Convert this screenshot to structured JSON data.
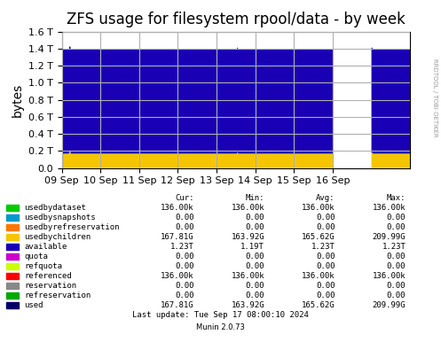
{
  "chart_data": {
    "type": "area",
    "stacked": true,
    "title": "ZFS usage for filesystem rpool/data - by week",
    "y_label": "bytes",
    "x": [
      1725753600,
      1725769754.924875,
      1725770764.607679,
      1725772783.973289,
      1725773793.656093,
      1726144347.245409,
      1726145356.928214,
      1726146366.611018,
      1726147376.293823,
      1726358400,
      1726358400,
      1726444800,
      1726446987.341772,
      1726448081.012658,
      1726531200
    ],
    "series": [
      {
        "name": "usedbydataset",
        "color": "#00c000",
        "values": [
          136000,
          136000,
          136000,
          136000,
          136000,
          136000,
          136000,
          136000,
          136000,
          136000,
          null,
          136000,
          136000,
          136000,
          136000
        ]
      },
      {
        "name": "usedbychildren",
        "color": "#f5c600",
        "values": [
          168000000000.0,
          168000000000.0,
          195000000000.0,
          195000000000.0,
          168000000000.0,
          168000000000.0,
          182000000000.0,
          182000000000.0,
          168000000000.0,
          168000000000.0,
          null,
          180000000000.0,
          180000000000.0,
          168000000000.0,
          168000000000.0
        ]
      },
      {
        "name": "available",
        "color": "#1a00b4",
        "values": [
          1230000000000.0,
          1230000000000.0,
          1230000000000.0,
          1230000000000.0,
          1230000000000.0,
          1230000000000.0,
          1230000000000.0,
          1230000000000.0,
          1230000000000.0,
          1230000000000.0,
          null,
          1230000000000.0,
          1230000000000.0,
          1230000000000.0,
          1230000000000.0
        ]
      }
    ],
    "xlim": [
      1725753600,
      1726531200
    ],
    "xticks": [
      {
        "value": 1725753600,
        "label": "09 Sep"
      },
      {
        "value": 1725840000,
        "label": "10 Sep"
      },
      {
        "value": 1725926400,
        "label": "11 Sep"
      },
      {
        "value": 1726012800,
        "label": "12 Sep"
      },
      {
        "value": 1726099200,
        "label": "13 Sep"
      },
      {
        "value": 1726185600,
        "label": "14 Sep"
      },
      {
        "value": 1726272000,
        "label": "15 Sep"
      },
      {
        "value": 1726358400,
        "label": "16 Sep"
      }
    ],
    "ylim": [
      0,
      1600000000000.0
    ],
    "yticks": [
      {
        "value": 0,
        "label": "0.0"
      },
      {
        "value": 200000000000.0,
        "label": "0.2 T"
      },
      {
        "value": 400000000000.0,
        "label": "0.4 T"
      },
      {
        "value": 600000000000.0,
        "label": "0.6 T"
      },
      {
        "value": 800000000000.0,
        "label": "0.8 T"
      },
      {
        "value": 1000000000000.0,
        "label": "1.0 T"
      },
      {
        "value": 1200000000000.0,
        "label": "1.2 T"
      },
      {
        "value": 1400000000000.0,
        "label": "1.4 T"
      },
      {
        "value": 1600000000000.0,
        "label": "1.6 T"
      }
    ],
    "grid": true,
    "annotations": [
      "RRDTOOL / TOBI OETIKER",
      "Last update: Tue Sep 17 08:00:10 2024",
      "Munin 2.0.73"
    ],
    "table": {
      "headers": [
        "Cur:",
        "Min:",
        "Avg:",
        "Max:"
      ],
      "rows": [
        {
          "label": "usedbydataset",
          "color": "#00cc00",
          "values": [
            "136.00k",
            "136.00k",
            "136.00k",
            "136.00k"
          ]
        },
        {
          "label": "usedbysnapshots",
          "color": "#0099cc",
          "values": [
            "0.00",
            "0.00",
            "0.00",
            "0.00"
          ]
        },
        {
          "label": "usedbyrefreservation",
          "color": "#ff7700",
          "values": [
            "0.00",
            "0.00",
            "0.00",
            "0.00"
          ]
        },
        {
          "label": "usedbychildren",
          "color": "#f5c600",
          "values": [
            "167.81G",
            "163.92G",
            "165.62G",
            "209.99G"
          ]
        },
        {
          "label": "available",
          "color": "#1a00b4",
          "values": [
            "1.23T",
            "1.19T",
            "1.23T",
            "1.23T"
          ]
        },
        {
          "label": "quota",
          "color": "#cc00cc",
          "values": [
            "0.00",
            "0.00",
            "0.00",
            "0.00"
          ]
        },
        {
          "label": "refquota",
          "color": "#ccff00",
          "values": [
            "0.00",
            "0.00",
            "0.00",
            "0.00"
          ]
        },
        {
          "label": "referenced",
          "color": "#ff0000",
          "values": [
            "136.00k",
            "136.00k",
            "136.00k",
            "136.00k"
          ]
        },
        {
          "label": "reservation",
          "color": "#888888",
          "values": [
            "0.00",
            "0.00",
            "0.00",
            "0.00"
          ]
        },
        {
          "label": "refreservation",
          "color": "#00aa00",
          "values": [
            "0.00",
            "0.00",
            "0.00",
            "0.00"
          ]
        },
        {
          "label": "used",
          "color": "#000066",
          "values": [
            "167.81G",
            "163.92G",
            "165.62G",
            "209.99G"
          ]
        }
      ]
    }
  }
}
